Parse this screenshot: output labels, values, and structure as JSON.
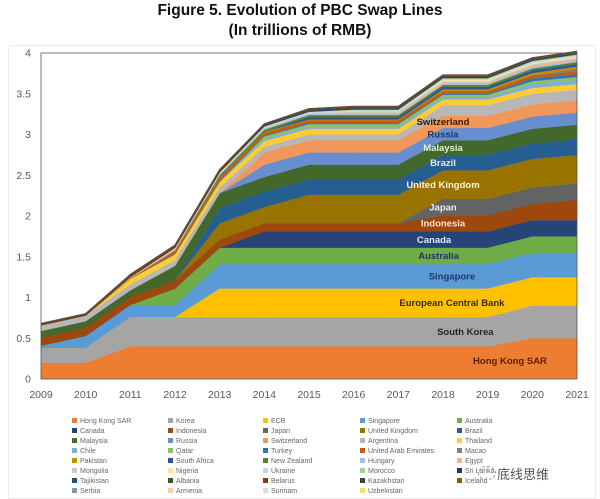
{
  "chart_data": {
    "type": "area",
    "stacked": true,
    "title": "Figure 5. Evolution of PBC Swap Lines",
    "subtitle": "(In trillions of RMB)",
    "xlabel": "",
    "ylabel": "",
    "x": [
      2009,
      2010,
      2011,
      2012,
      2013,
      2014,
      2015,
      2016,
      2017,
      2018,
      2019,
      2020,
      2021
    ],
    "x_tick_labels": [
      "2009",
      "2010",
      "2011",
      "2012",
      "2013",
      "2014",
      "2015",
      "2016",
      "2017",
      "2018",
      "2019",
      "2020",
      "2021"
    ],
    "ylim": [
      0,
      4
    ],
    "y_ticks": [
      0,
      0.5,
      1,
      1.5,
      2,
      2.5,
      3,
      3.5,
      4
    ],
    "y_tick_labels": [
      "0",
      "0.5",
      "1",
      "1.5",
      "2",
      "2.5",
      "3",
      "3.5",
      "4"
    ],
    "grid": false,
    "legend_position": "bottom",
    "series": [
      {
        "name": "Hong Kong SAR",
        "label": "Hong Kong SAR",
        "color": "#ED7D31",
        "values": [
          0.2,
          0.2,
          0.4,
          0.4,
          0.4,
          0.4,
          0.4,
          0.4,
          0.4,
          0.4,
          0.4,
          0.5,
          0.5
        ]
      },
      {
        "name": "Korea",
        "label": "South Korea",
        "color": "#A5A5A5",
        "values": [
          0.18,
          0.18,
          0.36,
          0.36,
          0.36,
          0.36,
          0.36,
          0.36,
          0.36,
          0.36,
          0.36,
          0.4,
          0.4
        ]
      },
      {
        "name": "ECB",
        "label": "European Central Bank",
        "color": "#FFC000",
        "values": [
          0,
          0,
          0,
          0,
          0.35,
          0.35,
          0.35,
          0.35,
          0.35,
          0.35,
          0.35,
          0.35,
          0.35
        ]
      },
      {
        "name": "Singapore",
        "label": "Singapore",
        "color": "#5B9BD5",
        "values": [
          0.03,
          0.15,
          0.15,
          0.15,
          0.3,
          0.3,
          0.3,
          0.3,
          0.3,
          0.3,
          0.3,
          0.3,
          0.3
        ]
      },
      {
        "name": "Australia",
        "label": "Australia",
        "color": "#70AD47",
        "values": [
          0,
          0,
          0,
          0.2,
          0.2,
          0.2,
          0.2,
          0.2,
          0.2,
          0.2,
          0.2,
          0.2,
          0.2
        ]
      },
      {
        "name": "Canada",
        "label": "Canada",
        "color": "#264478",
        "values": [
          0,
          0,
          0,
          0,
          0,
          0.2,
          0.2,
          0.2,
          0.2,
          0.2,
          0.2,
          0.2,
          0.2
        ]
      },
      {
        "name": "Indonesia",
        "label": "Indonesia",
        "color": "#9E480E",
        "values": [
          0.1,
          0.1,
          0.1,
          0.1,
          0.1,
          0.1,
          0.1,
          0.1,
          0.1,
          0.2,
          0.2,
          0.2,
          0.25
        ]
      },
      {
        "name": "Japan",
        "label": "Japan",
        "color": "#636363",
        "values": [
          0,
          0,
          0,
          0,
          0,
          0,
          0,
          0,
          0,
          0.2,
          0.2,
          0.2,
          0.2
        ]
      },
      {
        "name": "United Kingdom",
        "label": "United Kingdom",
        "color": "#997300",
        "values": [
          0,
          0,
          0,
          0,
          0.2,
          0.2,
          0.35,
          0.35,
          0.35,
          0.35,
          0.35,
          0.35,
          0.35
        ]
      },
      {
        "name": "Brazil",
        "label": "Brazil",
        "color": "#255E91",
        "values": [
          0,
          0,
          0,
          0,
          0.19,
          0.19,
          0.19,
          0.19,
          0.19,
          0.19,
          0.19,
          0.19,
          0.19
        ]
      },
      {
        "name": "Malaysia",
        "label": "Malaysia",
        "color": "#43682B",
        "values": [
          0.08,
          0.08,
          0.08,
          0.18,
          0.18,
          0.18,
          0.18,
          0.18,
          0.18,
          0.18,
          0.18,
          0.18,
          0.18
        ]
      },
      {
        "name": "Russia",
        "label": "Russia",
        "color": "#698ED0",
        "values": [
          0,
          0,
          0,
          0,
          0,
          0.15,
          0.15,
          0.15,
          0.15,
          0.15,
          0.15,
          0.15,
          0.15
        ]
      },
      {
        "name": "Switzerland",
        "label": "Switzerland",
        "color": "#F1975A",
        "values": [
          0,
          0,
          0,
          0,
          0,
          0.15,
          0.15,
          0.15,
          0.15,
          0.15,
          0.15,
          0.15,
          0.15
        ]
      },
      {
        "name": "Argentina",
        "label": "Argentina",
        "color": "#B7B7B7",
        "values": [
          0.07,
          0.07,
          0.07,
          0.07,
          0.07,
          0.07,
          0.07,
          0.07,
          0.07,
          0.13,
          0.13,
          0.13,
          0.13
        ]
      },
      {
        "name": "Thailand",
        "label": "Thailand",
        "color": "#FFCD33",
        "values": [
          0,
          0,
          0.07,
          0.07,
          0.07,
          0.07,
          0.07,
          0.07,
          0.07,
          0.07,
          0.07,
          0.07,
          0.07
        ]
      },
      {
        "name": "Chile",
        "label": "Chile",
        "color": "#7CAFDD",
        "values": [
          0,
          0,
          0,
          0,
          0,
          0.022,
          0.022,
          0.022,
          0.022,
          0.022,
          0.022,
          0.05,
          0.05
        ]
      },
      {
        "name": "Qatar",
        "label": "Qatar",
        "color": "#8CC168",
        "values": [
          0,
          0,
          0,
          0,
          0,
          0.035,
          0.035,
          0.035,
          0.035,
          0.035,
          0.035,
          0.035,
          0.035
        ]
      },
      {
        "name": "Turkey",
        "label": "Turkey",
        "color": "#2E75B6",
        "values": [
          0,
          0,
          0,
          0.01,
          0.01,
          0.012,
          0.012,
          0.012,
          0.012,
          0.012,
          0.012,
          0.035,
          0.035
        ]
      },
      {
        "name": "United Arab Emirates",
        "label": "United Arab Emirates",
        "color": "#C55A11",
        "values": [
          0,
          0,
          0,
          0.035,
          0.035,
          0.035,
          0.035,
          0.035,
          0.035,
          0.035,
          0.035,
          0.035,
          0.035
        ]
      },
      {
        "name": "Macao",
        "label": "Macao",
        "color": "#7F7F7F",
        "values": [
          0,
          0,
          0,
          0,
          0,
          0,
          0,
          0,
          0,
          0,
          0,
          0,
          0.03
        ]
      },
      {
        "name": "Pakistan",
        "label": "Pakistan",
        "color": "#BF9000",
        "values": [
          0,
          0,
          0.01,
          0.01,
          0.01,
          0.01,
          0.01,
          0.01,
          0.01,
          0.02,
          0.02,
          0.03,
          0.03
        ]
      },
      {
        "name": "South Africa",
        "label": "South Africa",
        "color": "#2F5597",
        "values": [
          0,
          0,
          0,
          0,
          0,
          0,
          0.03,
          0.03,
          0.03,
          0.03,
          0.03,
          0.03,
          0.03
        ]
      },
      {
        "name": "New Zealand",
        "label": "New Zealand",
        "color": "#548235",
        "values": [
          0,
          0,
          0,
          0,
          0.025,
          0.025,
          0.025,
          0.025,
          0.025,
          0.025,
          0.025,
          0.025,
          0.025
        ]
      },
      {
        "name": "Hungary",
        "label": "Hungary",
        "color": "#9DC3E6",
        "values": [
          0,
          0,
          0,
          0,
          0.01,
          0.01,
          0.01,
          0.01,
          0.01,
          0.01,
          0.01,
          0.02,
          0.02
        ]
      },
      {
        "name": "Egypt",
        "label": "Egypt",
        "color": "#F4B183",
        "values": [
          0,
          0,
          0,
          0,
          0,
          0,
          0,
          0.018,
          0.018,
          0.018,
          0.018,
          0.018,
          0.018
        ]
      },
      {
        "name": "Mongolia",
        "label": "Mongolia",
        "color": "#C9C9C9",
        "values": [
          0,
          0,
          0.01,
          0.01,
          0.01,
          0.015,
          0.015,
          0.015,
          0.015,
          0.015,
          0.015,
          0.015,
          0.015
        ]
      },
      {
        "name": "Nigeria",
        "label": "Nigeria",
        "color": "#FFE699",
        "values": [
          0,
          0,
          0,
          0,
          0,
          0,
          0,
          0,
          0,
          0.015,
          0.015,
          0.015,
          0.015
        ]
      },
      {
        "name": "Ukraine",
        "label": "Ukraine",
        "color": "#BDD7EE",
        "values": [
          0,
          0,
          0,
          0.015,
          0.015,
          0.015,
          0.015,
          0.015,
          0.015,
          0.015,
          0.015,
          0.015,
          0.015
        ]
      },
      {
        "name": "Morocco",
        "label": "Morocco",
        "color": "#A9D18E",
        "values": [
          0,
          0,
          0,
          0,
          0,
          0,
          0,
          0.01,
          0.01,
          0.01,
          0.01,
          0.01,
          0.01
        ]
      },
      {
        "name": "Sri Lanka",
        "label": "Sri Lanka",
        "color": "#1F3864",
        "values": [
          0,
          0,
          0,
          0,
          0,
          0.01,
          0.01,
          0.01,
          0.01,
          0.01,
          0.01,
          0.01,
          0.01
        ]
      },
      {
        "name": "Tajikistan",
        "label": "Tajikistan",
        "color": "#1F4E79",
        "values": [
          0,
          0,
          0,
          0,
          0,
          0,
          0.003,
          0.003,
          0.003,
          0.003,
          0.003,
          0.003,
          0.003
        ]
      },
      {
        "name": "Albania",
        "label": "Albania",
        "color": "#375623",
        "values": [
          0,
          0,
          0,
          0,
          0.002,
          0.002,
          0.002,
          0.002,
          0.002,
          0.002,
          0.002,
          0.002,
          0.002
        ]
      },
      {
        "name": "Belarus",
        "label": "Belarus",
        "color": "#843C0C",
        "values": [
          0.02,
          0.02,
          0.02,
          0.02,
          0.02,
          0.007,
          0.007,
          0.007,
          0.007,
          0.007,
          0.007,
          0.007,
          0.007
        ]
      },
      {
        "name": "Kazakhstan",
        "label": "Kazakhstan",
        "color": "#404040",
        "values": [
          0,
          0,
          0.007,
          0.007,
          0.007,
          0.007,
          0.007,
          0.007,
          0.007,
          0.007,
          0.007,
          0.007,
          0.007
        ]
      },
      {
        "name": "Iceland",
        "label": "Iceland",
        "color": "#7F6000",
        "values": [
          0,
          0,
          0.0035,
          0.0035,
          0.0035,
          0.0035,
          0.0035,
          0.0035,
          0.0035,
          0.0035,
          0.0035,
          0.0035,
          0.0035
        ]
      },
      {
        "name": "Serbia",
        "label": "Serbia",
        "color": "#8497B0",
        "values": [
          0,
          0,
          0,
          0,
          0,
          0,
          0.0015,
          0.0015,
          0.0015,
          0.0015,
          0.0015,
          0.0015,
          0.0015
        ]
      },
      {
        "name": "Armenia",
        "label": "Armenia",
        "color": "#F8CBAD",
        "values": [
          0,
          0,
          0,
          0,
          0,
          0,
          0.001,
          0.001,
          0.001,
          0.001,
          0.001,
          0.001,
          0.001
        ]
      },
      {
        "name": "Surinam",
        "label": "Surinam",
        "color": "#DBDBDB",
        "values": [
          0,
          0,
          0,
          0,
          0,
          0,
          0.001,
          0.001,
          0.001,
          0.001,
          0.001,
          0.001,
          0.001
        ]
      },
      {
        "name": "Uzbekistan",
        "label": "Uzbekistan",
        "color": "#FFD966",
        "values": [
          0,
          0,
          0.0007,
          0.0007,
          0.0007,
          0.0007,
          0.0007,
          0.0007,
          0.0007,
          0.0007,
          0.0007,
          0.0007,
          0.0007
        ]
      }
    ],
    "annotations": [
      {
        "text": "Switzerland",
        "series": "Switzerland",
        "x": 2018,
        "color": "#3a1a00"
      },
      {
        "text": "Russia",
        "series": "Russia",
        "x": 2018,
        "color": "#1F3864"
      },
      {
        "text": "Malaysia",
        "series": "Malaysia",
        "x": 2018,
        "color": "#E2EFDA"
      },
      {
        "text": "Brazil",
        "series": "Brazil",
        "x": 2018,
        "color": "#DDEBF7"
      },
      {
        "text": "United Kingdom",
        "series": "United Kingdom",
        "x": 2018,
        "color": "#FFF2CC"
      },
      {
        "text": "Japan",
        "series": "Japan",
        "x": 2018,
        "color": "#EDEDED"
      },
      {
        "text": "Indonesia",
        "series": "Indonesia",
        "x": 2018,
        "color": "#FCE4D6"
      },
      {
        "text": "Canada",
        "series": "Canada",
        "x": 2017.8,
        "color": "#DDEBF7"
      },
      {
        "text": "Australia",
        "series": "Australia",
        "x": 2017.9,
        "color": "#203864"
      },
      {
        "text": "Singapore",
        "series": "Singapore",
        "x": 2018.2,
        "color": "#1F3864"
      },
      {
        "text": "European Central Bank",
        "series": "ECB",
        "x": 2018.2,
        "color": "#3a2a00"
      },
      {
        "text": "South Korea",
        "series": "Korea",
        "x": 2018.5,
        "color": "#262626"
      },
      {
        "text": "Hong Kong SAR",
        "series": "Hong Kong SAR",
        "x": 2019.5,
        "color": "#5a1e00"
      }
    ]
  },
  "watermark": {
    "text": "底线思维"
  }
}
